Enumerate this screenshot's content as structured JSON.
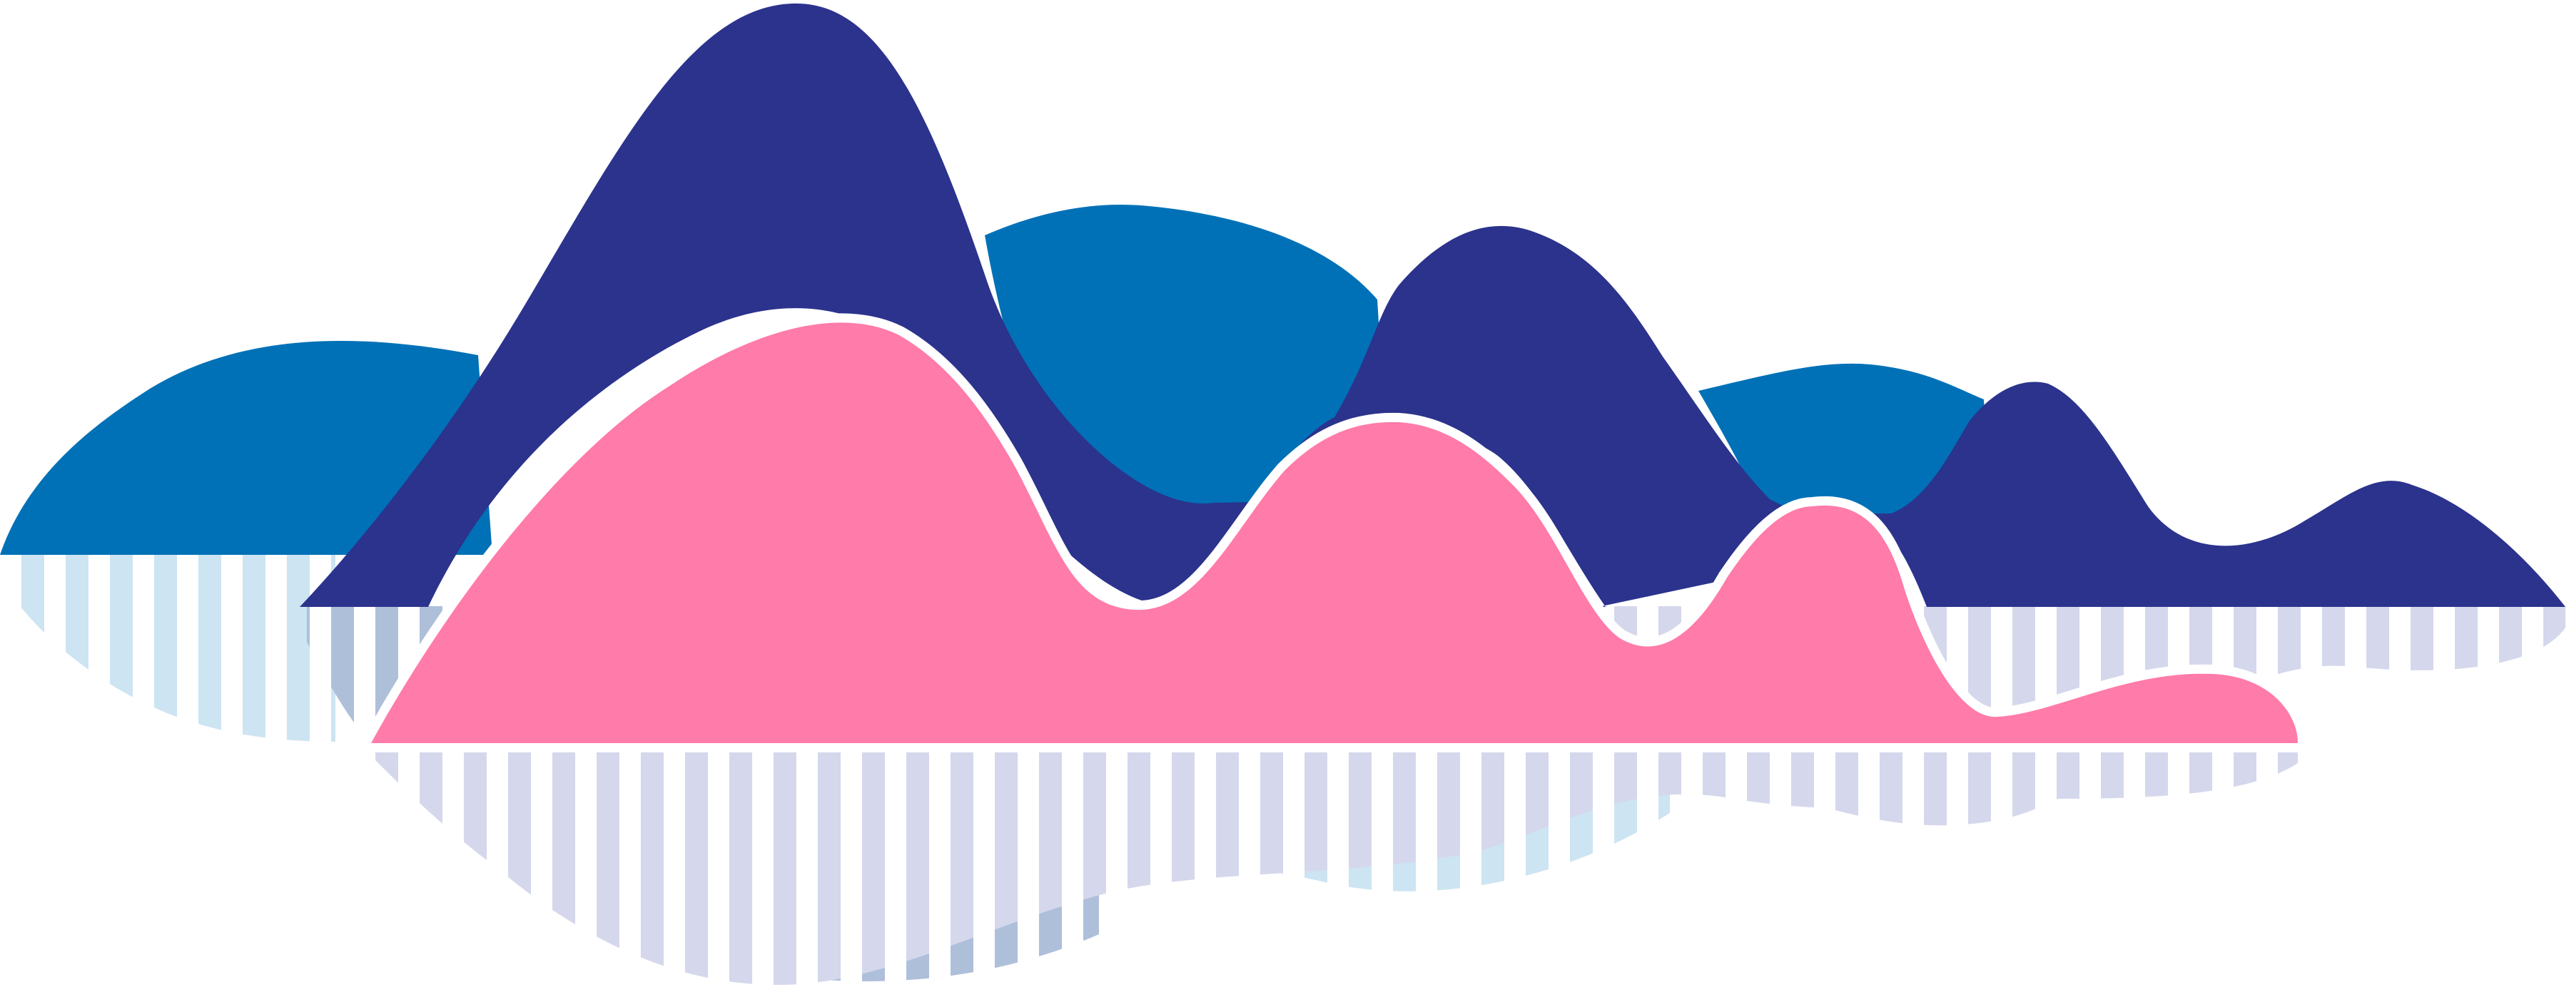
{
  "colors": {
    "background": "#ffffff",
    "navy": "#2b338d",
    "blue": "#0071b7",
    "pink": "#ff7ba9",
    "outline": "#ffffff",
    "stripe_light_blue": "#cde4f2",
    "stripe_lavender": "#d5d8ec",
    "stripe_steel": "#aebfda"
  },
  "layers": [
    {
      "name": "blue-hills",
      "color_key": "blue"
    },
    {
      "name": "navy-mountains",
      "color_key": "navy"
    },
    {
      "name": "pink-hills",
      "color_key": "pink"
    },
    {
      "name": "striped-reflection",
      "color_key": "stripe_lavender"
    }
  ]
}
